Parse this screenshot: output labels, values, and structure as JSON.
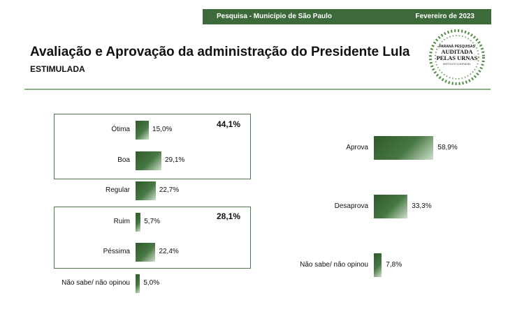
{
  "header": {
    "survey": "Pesquisa - Município de São Paulo",
    "date": "Fevereiro de 2023"
  },
  "title": "Avaliação e Aprovação da administração do Presidente Lula",
  "subtitle": "ESTIMULADA",
  "seal": {
    "line1": "PARANÁ PESQUISAS",
    "line2": "AUDITADA",
    "line3": "PELAS URNAS",
    "line4": "INSTITUTO CONFIÁVEL"
  },
  "colors": {
    "brand": "#3d6a3a",
    "bar_dark": "#2f5a2b",
    "bar_light": "#cfe0cc"
  },
  "chart_data": [
    {
      "type": "bar",
      "orientation": "horizontal",
      "categories": [
        "Ótima",
        "Boa",
        "Regular",
        "Ruim",
        "Péssima",
        "Não sabe/ não opinou"
      ],
      "values": [
        15.0,
        29.1,
        22.7,
        5.7,
        22.4,
        5.0
      ],
      "labels": [
        "15,0%",
        "29,1%",
        "22,7%",
        "5,7%",
        "22,4%",
        "5,0%"
      ],
      "groups": [
        {
          "members": [
            "Ótima",
            "Boa"
          ],
          "total": "44,1%"
        },
        {
          "members": [
            "Ruim",
            "Péssima"
          ],
          "total": "28,1%"
        }
      ]
    },
    {
      "type": "bar",
      "orientation": "horizontal",
      "categories": [
        "Aprova",
        "Desaprova",
        "Não sabe/ não opinou"
      ],
      "values": [
        58.9,
        33.3,
        7.8
      ],
      "labels": [
        "58,9%",
        "33,3%",
        "7,8%"
      ]
    }
  ]
}
